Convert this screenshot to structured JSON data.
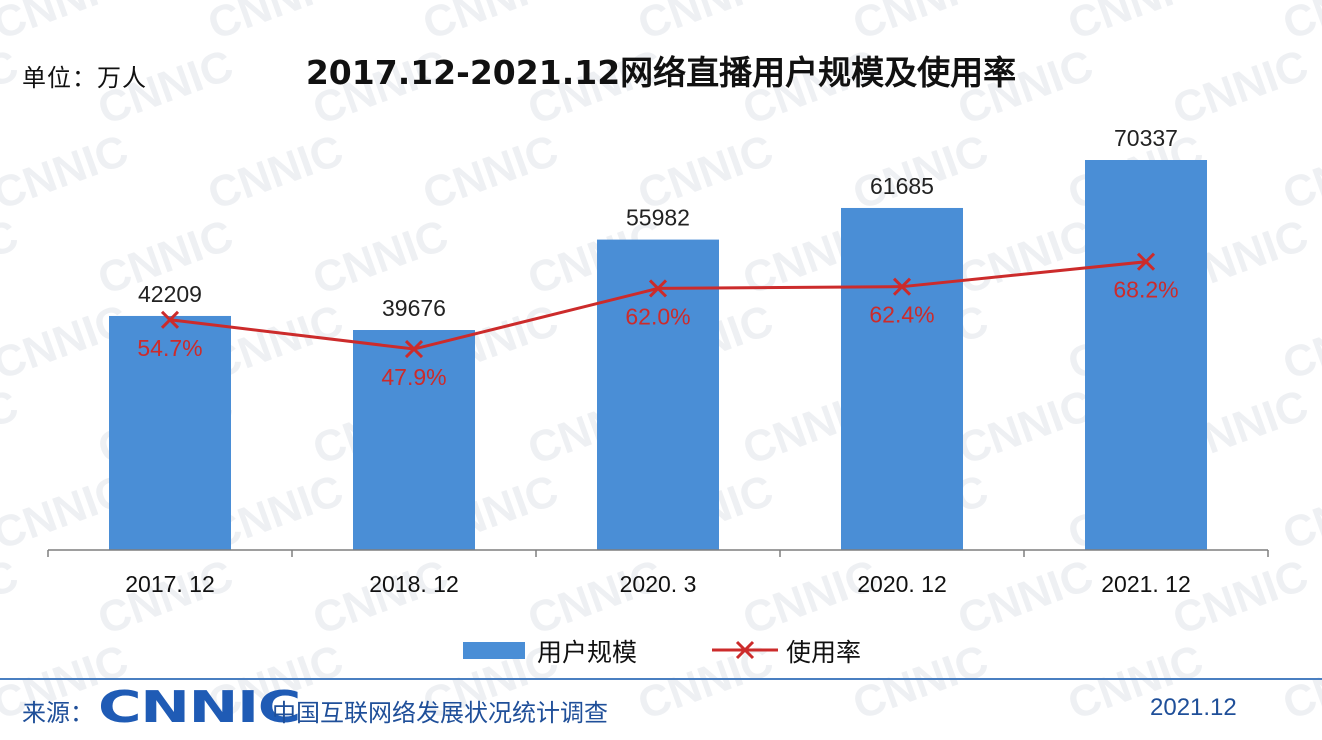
{
  "unit_label": "单位：万人",
  "chart_data": {
    "type": "bar",
    "title": "2017.12-2021.12网络直播用户规模及使用率",
    "categories": [
      "2017. 12",
      "2018. 12",
      "2020. 3",
      "2020. 12",
      "2021. 12"
    ],
    "series": [
      {
        "name": "用户规模",
        "type": "bar",
        "values": [
          42209,
          39676,
          55982,
          61685,
          70337
        ],
        "labels": [
          "42209",
          "39676",
          "55982",
          "61685",
          "70337"
        ],
        "color": "#4a8ed6"
      },
      {
        "name": "使用率",
        "type": "line",
        "values": [
          54.7,
          47.9,
          62.0,
          62.4,
          68.2
        ],
        "labels": [
          "54.7%",
          "47.9%",
          "62.0%",
          "62.4%",
          "68.2%"
        ],
        "color": "#cc2b2b"
      }
    ],
    "legend": {
      "position": "bottom"
    },
    "grid": false
  },
  "footer": {
    "source_label": "来源：",
    "logo_text": "CNNIC",
    "org_name": "中国互联网络发展状况统计调查",
    "date": "2021.12"
  },
  "watermark": "CNNIC"
}
